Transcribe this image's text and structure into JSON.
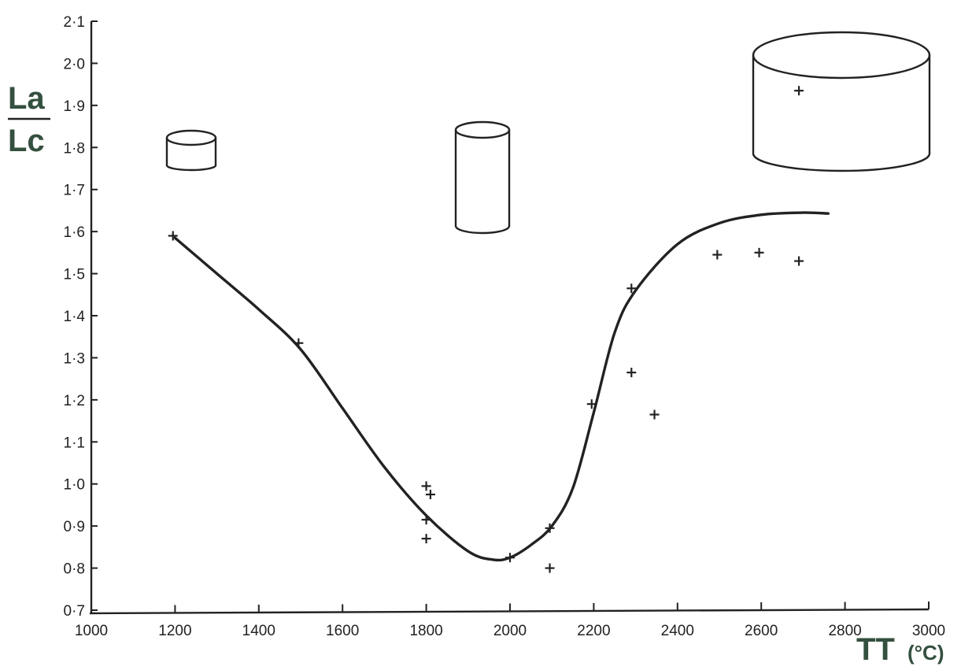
{
  "chart_data": {
    "type": "scatter",
    "title": "",
    "xlabel": "TT",
    "xunit": "(°C)",
    "ylabel_top": "La",
    "ylabel_bottom": "Lc",
    "xlim": [
      1000,
      3000
    ],
    "ylim": [
      0.7,
      2.1
    ],
    "x_ticks": [
      1000,
      1200,
      1400,
      1600,
      1800,
      2000,
      2200,
      2400,
      2600,
      2800,
      3000
    ],
    "x_tick_labels": [
      "1000",
      "1200",
      "1400",
      "1600",
      "1800",
      "2000",
      "2200",
      "2400",
      "2600",
      "2800",
      "3000"
    ],
    "y_ticks": [
      0.7,
      0.8,
      0.9,
      1.0,
      1.1,
      1.2,
      1.3,
      1.4,
      1.5,
      1.6,
      1.7,
      1.8,
      1.9,
      2.0,
      2.1
    ],
    "y_tick_labels": [
      "0·7",
      "0·8",
      "0·9",
      "1·0",
      "1·1",
      "1·2",
      "1·3",
      "1·4",
      "1·5",
      "1·6",
      "1·7",
      "1·8",
      "1·9",
      "2·0",
      "2·1"
    ],
    "grid": false,
    "points": [
      {
        "x": 1195,
        "y": 1.59
      },
      {
        "x": 1495,
        "y": 1.335
      },
      {
        "x": 1800,
        "y": 0.995
      },
      {
        "x": 1810,
        "y": 0.975
      },
      {
        "x": 1800,
        "y": 0.915
      },
      {
        "x": 1800,
        "y": 0.87
      },
      {
        "x": 2000,
        "y": 0.825
      },
      {
        "x": 2095,
        "y": 0.895
      },
      {
        "x": 2095,
        "y": 0.8
      },
      {
        "x": 2195,
        "y": 1.19
      },
      {
        "x": 2290,
        "y": 1.465
      },
      {
        "x": 2290,
        "y": 1.265
      },
      {
        "x": 2345,
        "y": 1.165
      },
      {
        "x": 2495,
        "y": 1.545
      },
      {
        "x": 2595,
        "y": 1.55
      },
      {
        "x": 2690,
        "y": 1.53
      },
      {
        "x": 2690,
        "y": 1.935
      }
    ],
    "trend_curve": {
      "x": [
        1200,
        1300,
        1400,
        1500,
        1600,
        1700,
        1800,
        1900,
        1960,
        2000,
        2050,
        2100,
        2150,
        2200,
        2250,
        2300,
        2400,
        2500,
        2600,
        2700,
        2760
      ],
      "y": [
        1.585,
        1.5,
        1.415,
        1.32,
        1.18,
        1.04,
        0.925,
        0.84,
        0.82,
        0.825,
        0.855,
        0.9,
        0.99,
        1.17,
        1.36,
        1.46,
        1.57,
        1.62,
        1.64,
        1.645,
        1.643
      ]
    },
    "illustrations": [
      {
        "kind": "cylinder",
        "name": "short-cylinder"
      },
      {
        "kind": "cylinder",
        "name": "tall-cylinder"
      },
      {
        "kind": "cylinder",
        "name": "wide-cylinder"
      }
    ]
  }
}
